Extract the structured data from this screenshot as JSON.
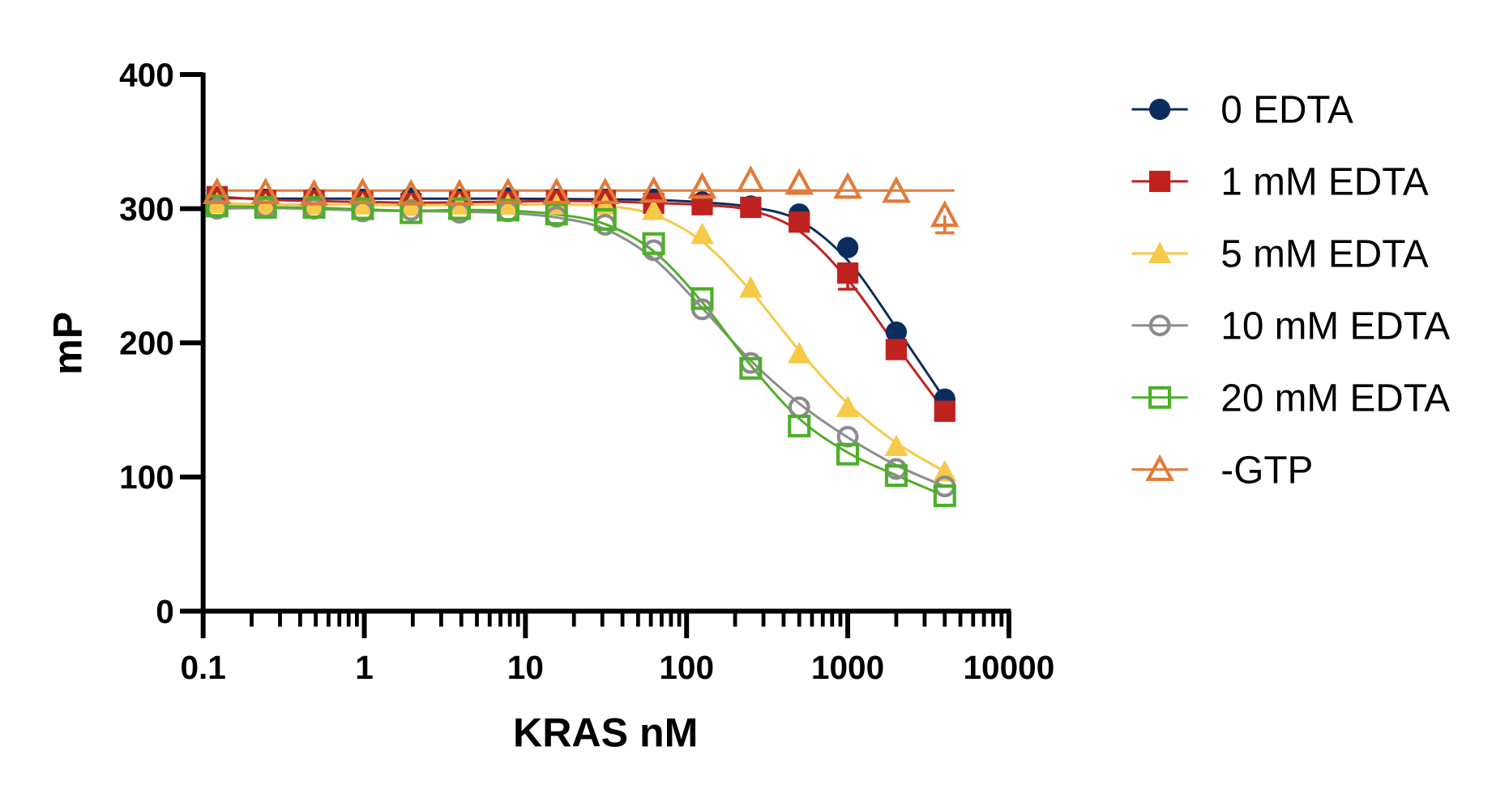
{
  "chart_data": {
    "type": "scatter",
    "xlabel": "KRAS nM",
    "ylabel": "mP",
    "xscale": "log",
    "xlim": [
      0.1,
      10000
    ],
    "ylim": [
      0,
      400
    ],
    "xticks": [
      "0.1",
      "1",
      "10",
      "100",
      "1000",
      "10000"
    ],
    "yticks": [
      "0",
      "100",
      "200",
      "300",
      "400"
    ],
    "grid": false,
    "legend_position": "right",
    "x": [
      0.122,
      0.244,
      0.488,
      0.977,
      1.95,
      3.9,
      7.8,
      15.6,
      31.25,
      62.5,
      125,
      250,
      500,
      1000,
      2000,
      4000
    ],
    "series": [
      {
        "name": "0 EDTA",
        "color": "#0b2d5e",
        "marker": "circle-filled",
        "curve": "sigmoid",
        "values": [
          308,
          307,
          308,
          307,
          308,
          307,
          308,
          307,
          307,
          307,
          305,
          302,
          296,
          271,
          208,
          158
        ]
      },
      {
        "name": "1 mM EDTA",
        "color": "#c0221f",
        "marker": "square-filled",
        "curve": "sigmoid",
        "values": [
          309,
          306,
          306,
          305,
          304,
          305,
          305,
          306,
          306,
          304,
          303,
          301,
          290,
          252,
          195,
          149
        ],
        "errors": {
          "1000": 12
        }
      },
      {
        "name": "5 mM EDTA",
        "color": "#f7c948",
        "marker": "triangle-filled",
        "curve": "sigmoid",
        "values": [
          304,
          303,
          303,
          303,
          302,
          303,
          303,
          303,
          303,
          299,
          281,
          241,
          192,
          152,
          123,
          104
        ]
      },
      {
        "name": "10 mM EDTA",
        "color": "#8c8c8c",
        "marker": "circle-open",
        "curve": "sigmoid",
        "values": [
          300,
          301,
          300,
          298,
          299,
          297,
          298,
          294,
          288,
          269,
          225,
          185,
          152,
          130,
          106,
          93
        ]
      },
      {
        "name": "20 mM EDTA",
        "color": "#4daf2a",
        "marker": "square-open",
        "curve": "sigmoid",
        "values": [
          302,
          301,
          301,
          300,
          297,
          300,
          299,
          296,
          292,
          274,
          233,
          181,
          138,
          117,
          101,
          86
        ]
      },
      {
        "name": "-GTP",
        "color": "#e07b39",
        "marker": "triangle-open",
        "curve": "flat",
        "values": [
          312,
          312,
          311,
          312,
          311,
          311,
          312,
          312,
          312,
          313,
          316,
          321,
          319,
          316,
          313,
          295
        ],
        "errors": {
          "4000": 13
        }
      }
    ]
  }
}
